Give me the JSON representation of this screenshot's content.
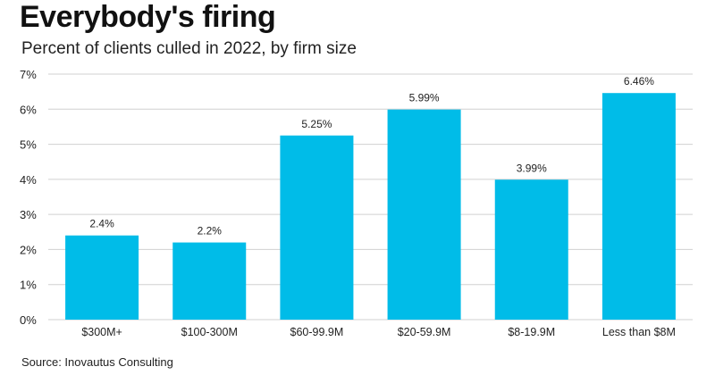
{
  "header": {
    "title": "Everybody's firing",
    "subtitle": "Percent of clients culled in 2022, by firm size"
  },
  "footer": {
    "source": "Source: Inovautus Consulting"
  },
  "chart_data": {
    "type": "bar",
    "title": "Everybody's firing",
    "subtitle": "Percent of clients culled in 2022, by firm size",
    "categories": [
      "$300M+",
      "$100-300M",
      "$60-99.9M",
      "$20-59.9M",
      "$8-19.9M",
      "Less than $8M"
    ],
    "values": [
      2.4,
      2.2,
      5.25,
      5.99,
      3.99,
      6.46
    ],
    "value_labels": [
      "2.4%",
      "2.2%",
      "5.25%",
      "5.99%",
      "3.99%",
      "6.46%"
    ],
    "y_ticks": [
      0,
      1,
      2,
      3,
      4,
      5,
      6,
      7
    ],
    "y_tick_labels": [
      "0%",
      "1%",
      "2%",
      "3%",
      "4%",
      "5%",
      "6%",
      "7%"
    ],
    "ylim": [
      0,
      7
    ],
    "xlabel": "",
    "ylabel": "",
    "grid": true,
    "legend": "none",
    "bar_color": "#00bce8",
    "grid_color": "#d0d0d0"
  }
}
